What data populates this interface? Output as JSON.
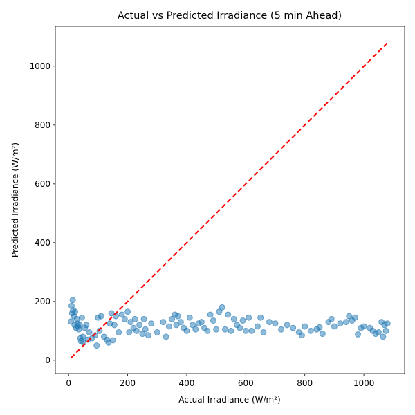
{
  "chart_data": {
    "type": "scatter",
    "title": "Actual vs Predicted Irradiance (5 min Ahead)",
    "x_label": "Actual Irradiance (W/m²)",
    "y_label": "Predicted Irradiance (W/m²)",
    "color": "#1f77b4",
    "x": [
      8,
      10,
      12,
      14,
      15,
      18,
      20,
      22,
      25,
      28,
      30,
      32,
      35,
      38,
      40,
      42,
      45,
      48,
      50,
      55,
      60,
      65,
      70,
      80,
      90,
      95,
      100,
      105,
      110,
      120,
      130,
      135,
      140,
      145,
      150,
      155,
      160,
      170,
      180,
      190,
      200,
      205,
      210,
      220,
      225,
      230,
      240,
      250,
      255,
      260,
      270,
      280,
      300,
      320,
      330,
      340,
      350,
      360,
      365,
      370,
      380,
      390,
      400,
      410,
      420,
      430,
      440,
      450,
      460,
      470,
      480,
      490,
      500,
      510,
      520,
      530,
      540,
      550,
      560,
      570,
      580,
      590,
      600,
      610,
      620,
      640,
      650,
      660,
      680,
      700,
      720,
      740,
      760,
      780,
      790,
      800,
      820,
      840,
      850,
      860,
      880,
      890,
      900,
      920,
      940,
      950,
      960,
      970,
      980,
      990,
      1000,
      1020,
      1030,
      1040,
      1050,
      1060,
      1065,
      1070,
      1075,
      1080
    ],
    "values": [
      132,
      185,
      160,
      205,
      170,
      150,
      120,
      165,
      110,
      140,
      125,
      115,
      105,
      120,
      75,
      65,
      145,
      80,
      60,
      110,
      120,
      70,
      95,
      75,
      85,
      50,
      145,
      100,
      150,
      80,
      70,
      60,
      125,
      160,
      68,
      120,
      150,
      95,
      155,
      140,
      165,
      95,
      130,
      110,
      140,
      100,
      120,
      90,
      140,
      105,
      85,
      125,
      95,
      130,
      80,
      115,
      140,
      155,
      120,
      150,
      130,
      110,
      100,
      145,
      120,
      105,
      125,
      130,
      110,
      100,
      155,
      135,
      105,
      165,
      180,
      105,
      155,
      100,
      140,
      120,
      110,
      135,
      100,
      145,
      100,
      115,
      145,
      95,
      130,
      125,
      105,
      120,
      110,
      95,
      85,
      115,
      100,
      105,
      112,
      90,
      130,
      140,
      115,
      125,
      130,
      150,
      135,
      145,
      88,
      110,
      115,
      110,
      100,
      90,
      95,
      130,
      80,
      120,
      100,
      125
    ],
    "reference_line": {
      "x": [
        8,
        1080
      ],
      "values": [
        8,
        1080
      ],
      "color": "#ff0000",
      "style": "dashed"
    },
    "xlim": [
      -45,
      1138
    ],
    "ylim": [
      -45,
      1136
    ],
    "xticks": [
      0,
      200,
      400,
      600,
      800,
      1000
    ],
    "yticks": [
      0,
      200,
      400,
      600,
      800,
      1000
    ],
    "grid": false
  }
}
